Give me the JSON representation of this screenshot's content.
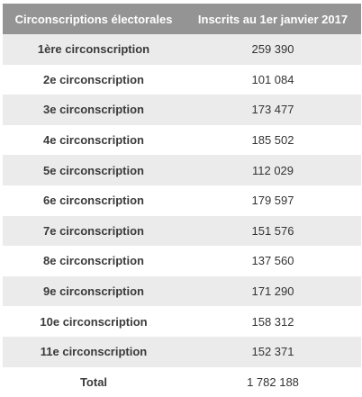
{
  "table": {
    "headers": {
      "col1": "Circonscriptions électorales",
      "col2": "Inscrits au 1er janvier 2017"
    },
    "rows": [
      {
        "name": "1ère circonscription",
        "value": "259 390"
      },
      {
        "name": "2e circonscription",
        "value": "101 084"
      },
      {
        "name": "3e circonscription",
        "value": "173 477"
      },
      {
        "name": "4e circonscription",
        "value": "185 502"
      },
      {
        "name": "5e circonscription",
        "value": "112 029"
      },
      {
        "name": "6e circonscription",
        "value": "179 597"
      },
      {
        "name": "7e circonscription",
        "value": "151 576"
      },
      {
        "name": "8e circonscription",
        "value": "137 560"
      },
      {
        "name": "9e circonscription",
        "value": "171 290"
      },
      {
        "name": "10e circonscription",
        "value": "158 312"
      },
      {
        "name": "11e circonscription",
        "value": "152 371"
      }
    ],
    "total": {
      "name": "Total",
      "value": "1 782 188"
    }
  },
  "colors": {
    "header_bg": "#949494",
    "header_text": "#ffffff",
    "stripe_bg": "#ebebeb"
  }
}
